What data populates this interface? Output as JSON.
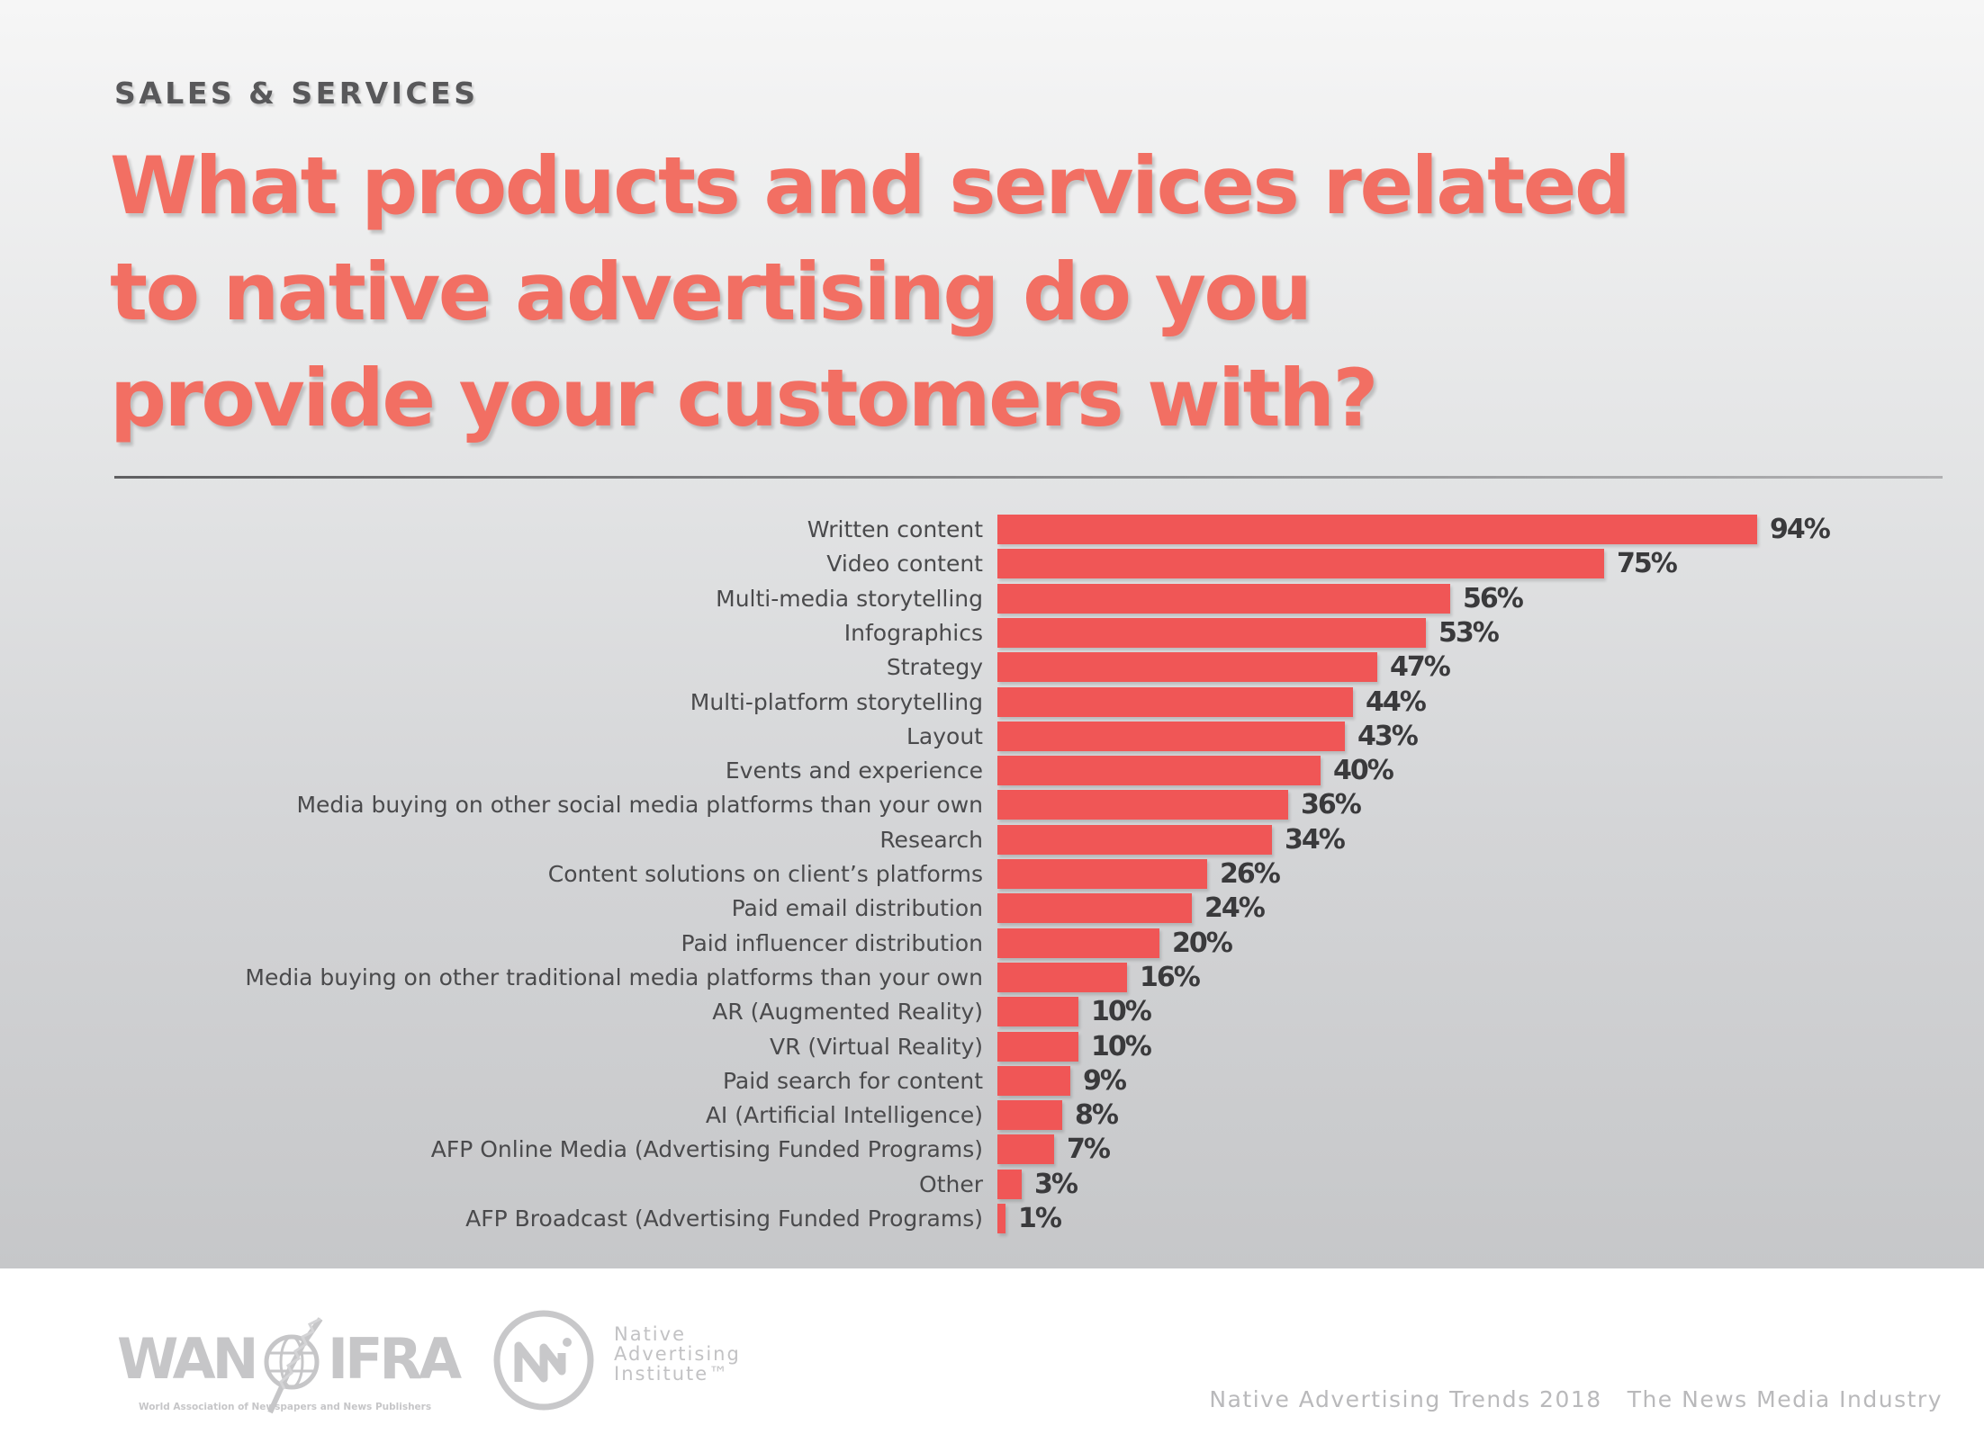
{
  "header": {
    "section_label": "SALES & SERVICES",
    "title_lines": [
      "What products and services related",
      "to native advertising do you",
      "provide your customers with?"
    ]
  },
  "colors": {
    "title": "#f26f63",
    "bar": "#f05656",
    "value_text": "#3a3a3c",
    "label_text": "#4a4a4c"
  },
  "chart_data": {
    "type": "bar",
    "orientation": "horizontal",
    "title": "What products and services related to native advertising do you provide your customers with?",
    "xlabel": "",
    "ylabel": "",
    "unit": "%",
    "xlim": [
      0,
      100
    ],
    "grid": false,
    "legend": "none",
    "categories": [
      "Written content",
      "Video content",
      "Multi-media storytelling",
      "Infographics",
      "Strategy",
      "Multi-platform storytelling",
      "Layout",
      "Events and experience",
      "Media buying on other social media platforms than your own",
      "Research",
      "Content solutions on client’s platforms",
      "Paid email distribution",
      "Paid influencer distribution",
      "Media buying on other traditional media platforms than your own",
      "AR (Augmented Reality)",
      "VR (Virtual Reality)",
      "Paid search for content",
      "AI (Artificial Intelligence)",
      "AFP Online Media (Advertising Funded Programs)",
      "Other",
      "AFP Broadcast (Advertising Funded Programs)"
    ],
    "values": [
      94,
      75,
      56,
      53,
      47,
      44,
      43,
      40,
      36,
      34,
      26,
      24,
      20,
      16,
      10,
      10,
      9,
      8,
      7,
      3,
      1
    ],
    "value_labels": [
      "94%",
      "75%",
      "56%",
      "53%",
      "47%",
      "44%",
      "43%",
      "40%",
      "36%",
      "34%",
      "26%",
      "24%",
      "20%",
      "16%",
      "10%",
      "10%",
      "9%",
      "8%",
      "7%",
      "3%",
      "1%"
    ]
  },
  "footer": {
    "wan_logo": {
      "left": "WAN",
      "right": "IFRA",
      "subtitle": "World Association of Newspapers and News Publishers",
      "icon": "globe-quill-icon"
    },
    "nai_logo": {
      "lines": [
        "Native",
        "Advertising",
        "Institute™"
      ],
      "icon": "nai-circle-icon"
    },
    "publication": "Native Advertising Trends 2018",
    "subtitle": "The News Media Industry"
  }
}
